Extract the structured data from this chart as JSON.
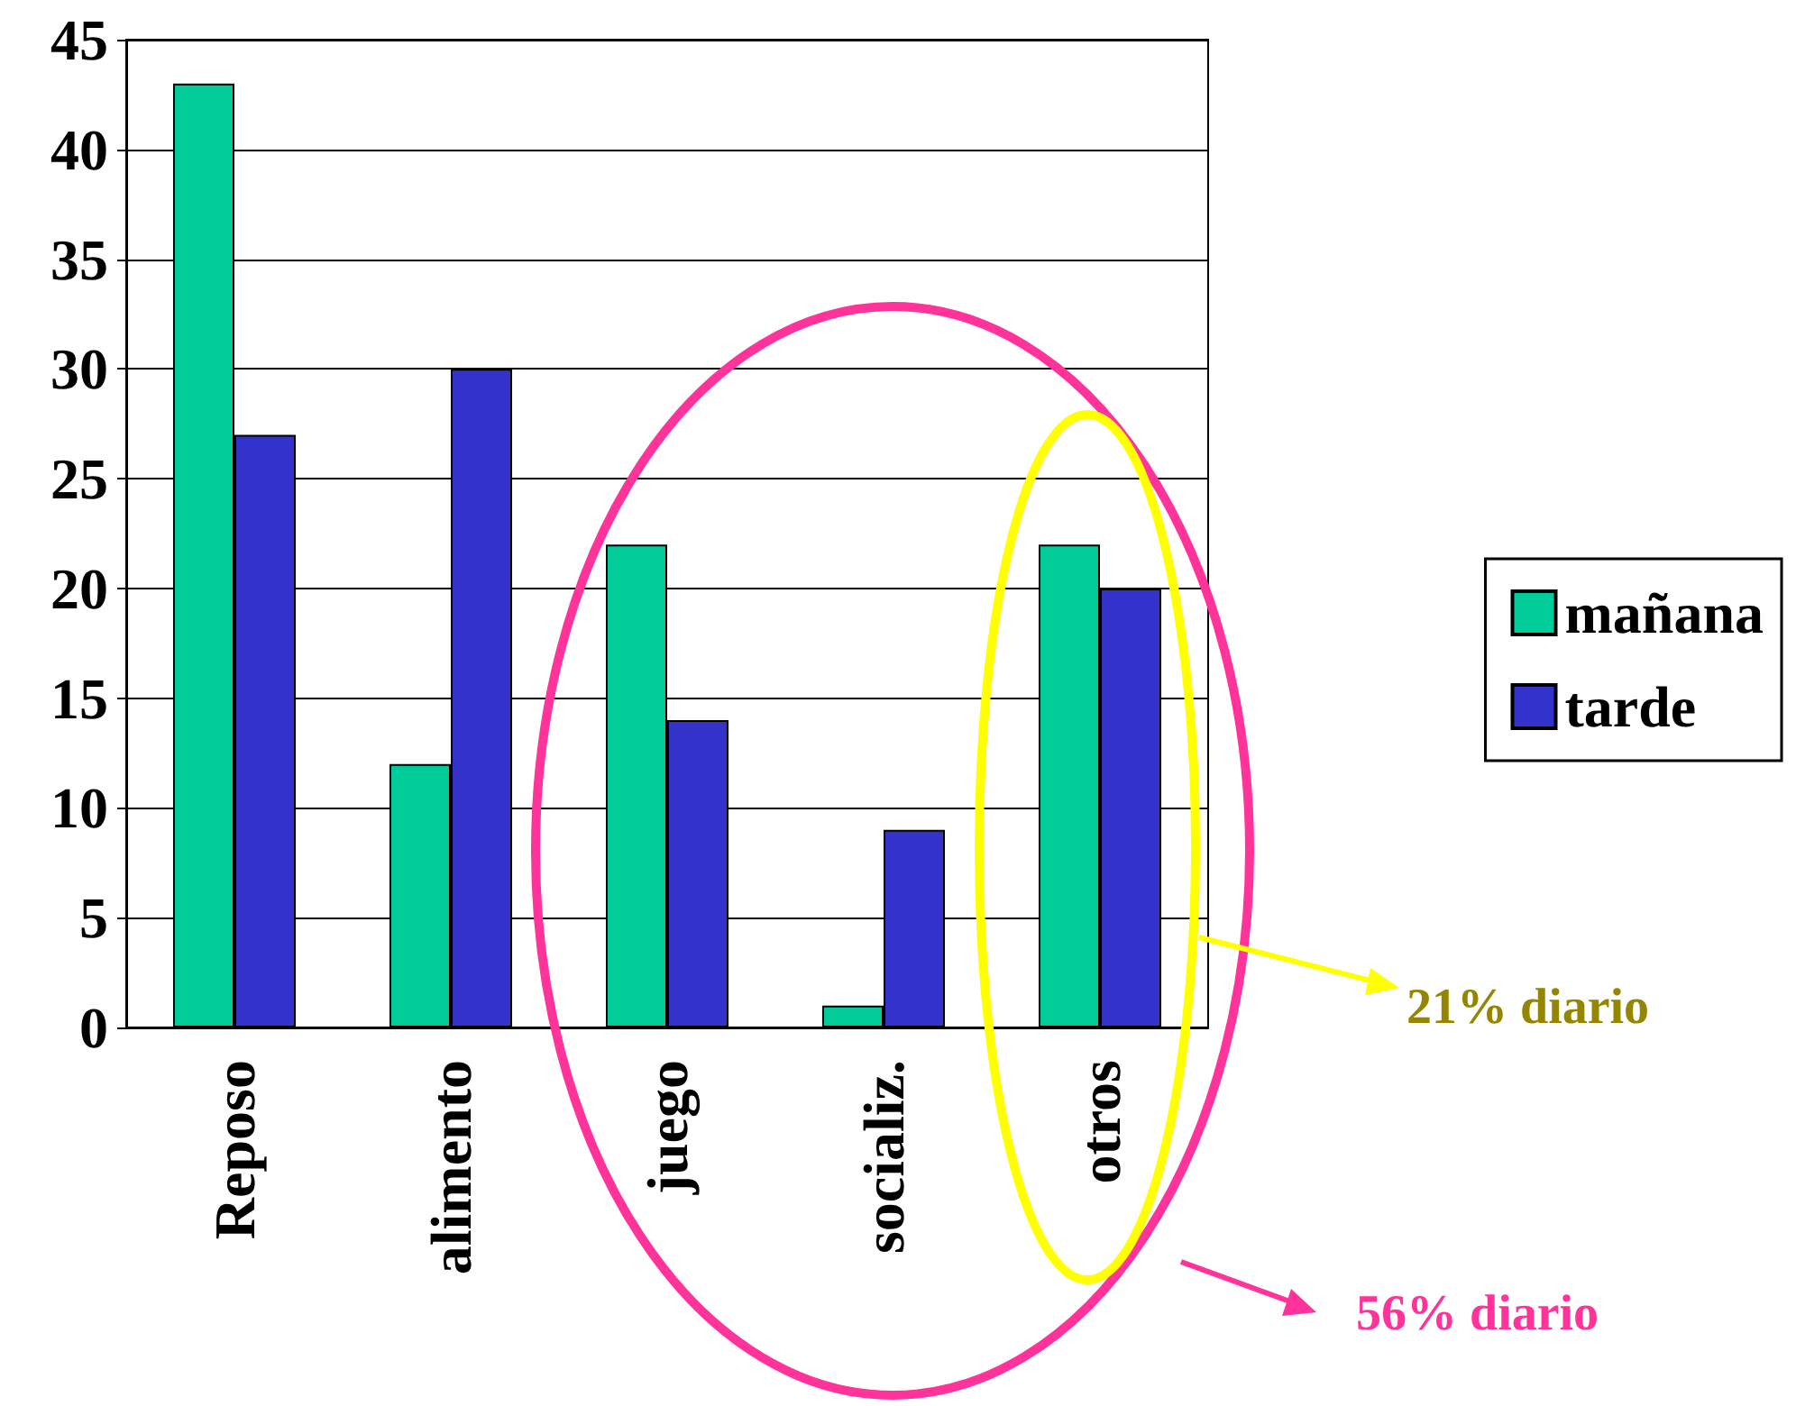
{
  "chart_data": {
    "type": "bar",
    "categories": [
      "Reposo",
      "alimento",
      "juego",
      "socializ.",
      "otros"
    ],
    "series": [
      {
        "name": "mañana",
        "color": "#00cc99",
        "values": [
          43,
          12,
          22,
          1,
          22
        ]
      },
      {
        "name": "tarde",
        "color": "#3333cc",
        "values": [
          27,
          30,
          14,
          9,
          20
        ]
      }
    ],
    "ylim": [
      0,
      45
    ],
    "yticks": [
      0,
      5,
      10,
      15,
      20,
      25,
      30,
      35,
      40,
      45
    ],
    "grid": "y",
    "legend": "right",
    "annotations": [
      "21% diario",
      "56% diario"
    ]
  }
}
